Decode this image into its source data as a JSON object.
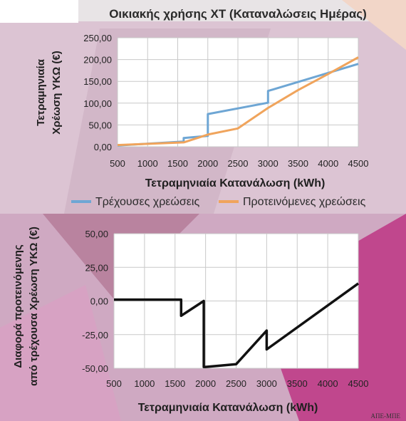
{
  "chart_data": [
    {
      "type": "line",
      "title": "Οικιακής χρήσης ΧΤ (Καταναλώσεις Ημέρας)",
      "xlabel": "Τετραμηνιαία Κατανάλωση (kWh)",
      "ylabel": "Τετραμηνιαία Χρέωση ΥΚΩ (€)",
      "x_ticks": [
        "500",
        "1000",
        "1500",
        "2000",
        "2500",
        "3000",
        "3500",
        "4000",
        "4500"
      ],
      "y_ticks": [
        "0,00",
        "50,00",
        "100,00",
        "150,00",
        "200,00",
        "250,00"
      ],
      "xlim": [
        500,
        4500
      ],
      "ylim": [
        0,
        250
      ],
      "grid": true,
      "legend": "bottom",
      "series": [
        {
          "name": "Τρέχουσες χρεώσεις",
          "color": "#6ea6d4",
          "points": [
            [
              500,
              3
            ],
            [
              1600,
              12
            ],
            [
              1600,
              20
            ],
            [
              2000,
              25
            ],
            [
              2000,
              75
            ],
            [
              3000,
              101
            ],
            [
              3000,
              128
            ],
            [
              4500,
              190
            ]
          ]
        },
        {
          "name": "Προτεινόμενες χρεώσεις",
          "color": "#f0a45c",
          "points": [
            [
              500,
              4
            ],
            [
              1600,
              10
            ],
            [
              2000,
              28
            ],
            [
              2500,
              42
            ],
            [
              3000,
              89
            ],
            [
              3500,
              130
            ],
            [
              4000,
              167
            ],
            [
              4500,
              205
            ]
          ]
        }
      ]
    },
    {
      "type": "line",
      "xlabel": "Τετραμηνιαία Κατανάλωση (kWh)",
      "ylabel": "Διαφορά προτεινόμενης από τρέχουσα Χρέωση ΥΚΩ (€)",
      "x_ticks": [
        "500",
        "1000",
        "1500",
        "2000",
        "2500",
        "3000",
        "3500",
        "4000",
        "4500"
      ],
      "y_ticks": [
        "-50,00",
        "-25,00",
        "0,00",
        "25,00",
        "50,00"
      ],
      "xlim": [
        500,
        4500
      ],
      "ylim": [
        -50,
        50
      ],
      "grid": true,
      "series": [
        {
          "color": "#111111",
          "points": [
            [
              500,
              1
            ],
            [
              1600,
              1
            ],
            [
              1600,
              -11
            ],
            [
              1970,
              0
            ],
            [
              1970,
              -49
            ],
            [
              2000,
              -49
            ],
            [
              2500,
              -47
            ],
            [
              3000,
              -22
            ],
            [
              3000,
              -36
            ],
            [
              4500,
              13
            ]
          ]
        }
      ]
    }
  ],
  "credit": "ΑΠΕ-ΜΠΕ"
}
